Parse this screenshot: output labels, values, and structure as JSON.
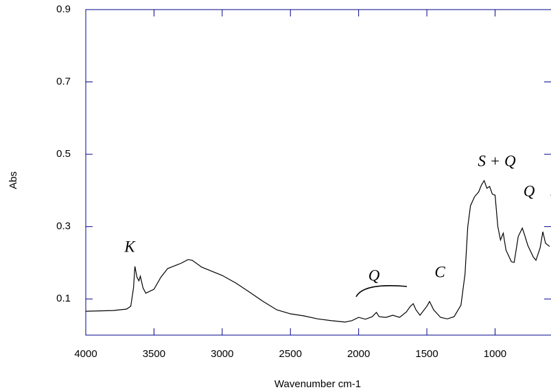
{
  "chart_data": {
    "type": "line",
    "xlabel": "Wavenumber cm-1",
    "ylabel": "Abs",
    "annotations": [
      "K",
      "Q",
      "C",
      "S + Q",
      "Q",
      "S"
    ],
    "x": [
      4000,
      3800,
      3700,
      3670,
      3650,
      3640,
      3625,
      3610,
      3600,
      3580,
      3560,
      3500,
      3450,
      3400,
      3300,
      3250,
      3220,
      3150,
      3000,
      2900,
      2800,
      2700,
      2600,
      2500,
      2400,
      2300,
      2200,
      2100,
      2050,
      2000,
      1950,
      1900,
      1870,
      1850,
      1800,
      1750,
      1700,
      1650,
      1620,
      1600,
      1580,
      1550,
      1500,
      1480,
      1450,
      1400,
      1350,
      1300,
      1250,
      1220,
      1200,
      1180,
      1150,
      1120,
      1100,
      1080,
      1060,
      1040,
      1020,
      1000,
      980,
      960,
      940,
      920,
      880,
      860,
      830,
      800,
      780,
      760,
      720,
      700,
      670,
      650,
      630,
      600
    ],
    "series": [
      {
        "color": "#000000",
        "values": [
          0.066,
          0.068,
          0.072,
          0.08,
          0.131,
          0.19,
          0.16,
          0.15,
          0.163,
          0.13,
          0.116,
          0.127,
          0.16,
          0.184,
          0.199,
          0.209,
          0.207,
          0.188,
          0.165,
          0.144,
          0.119,
          0.093,
          0.07,
          0.059,
          0.053,
          0.045,
          0.04,
          0.036,
          0.04,
          0.049,
          0.044,
          0.051,
          0.063,
          0.051,
          0.049,
          0.055,
          0.049,
          0.064,
          0.08,
          0.087,
          0.07,
          0.055,
          0.08,
          0.093,
          0.07,
          0.049,
          0.045,
          0.051,
          0.083,
          0.169,
          0.3,
          0.358,
          0.383,
          0.396,
          0.415,
          0.427,
          0.406,
          0.411,
          0.39,
          0.387,
          0.3,
          0.263,
          0.282,
          0.235,
          0.203,
          0.201,
          0.273,
          0.296,
          0.273,
          0.248,
          0.216,
          0.207,
          0.241,
          0.286,
          0.254,
          0.245
        ]
      }
    ],
    "xlim": [
      4000,
      590
    ],
    "ylim": [
      0,
      0.9
    ],
    "xticks": [
      4000,
      3500,
      3000,
      2500,
      2000,
      1500,
      1000
    ],
    "yticks": [
      0.1,
      0.3,
      0.5,
      0.7,
      0.9
    ],
    "axis_color": "#00008b"
  }
}
